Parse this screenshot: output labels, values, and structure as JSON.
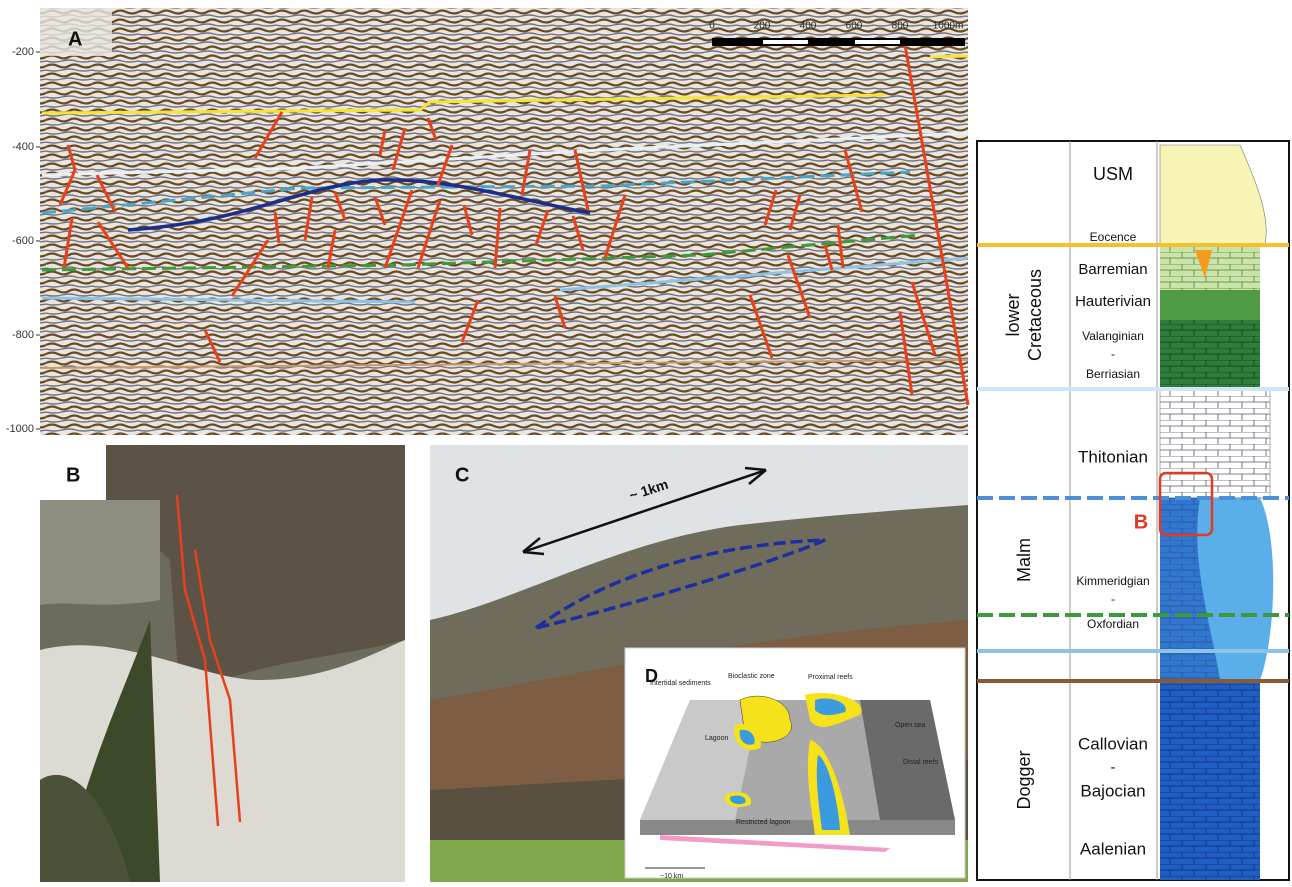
{
  "panel_a": {
    "label": "A",
    "depth_ticks": [
      "-200",
      "-400",
      "-600",
      "-800",
      "-1000"
    ],
    "scale_labels": [
      "0",
      "200",
      "400",
      "600",
      "800",
      "1000m"
    ]
  },
  "panel_b": {
    "label": "B"
  },
  "panel_c": {
    "label": "C",
    "distance": "~ 1km"
  },
  "panel_d": {
    "label": "D",
    "zones": [
      "Bioclastic zone",
      "Proximal reefs",
      "Intertidal sediments",
      "Lagoon",
      "Open sea",
      "Distal reefs",
      "Restricted lagoon"
    ],
    "scale": "~10 km"
  },
  "column": {
    "eras": [
      [
        "lower",
        "Cretaceous"
      ],
      [
        "Malm"
      ],
      [
        "Dogger"
      ]
    ],
    "stages": [
      "USM",
      "Eocence",
      "Barremian",
      "Hauterivian",
      "Valanginian",
      "-",
      "Berriasian",
      "Thitonian",
      "Kimmeridgian",
      "-",
      "Oxfordian",
      "Callovian",
      "-",
      "Bajocian",
      "Aalenian"
    ],
    "marker": "B"
  }
}
